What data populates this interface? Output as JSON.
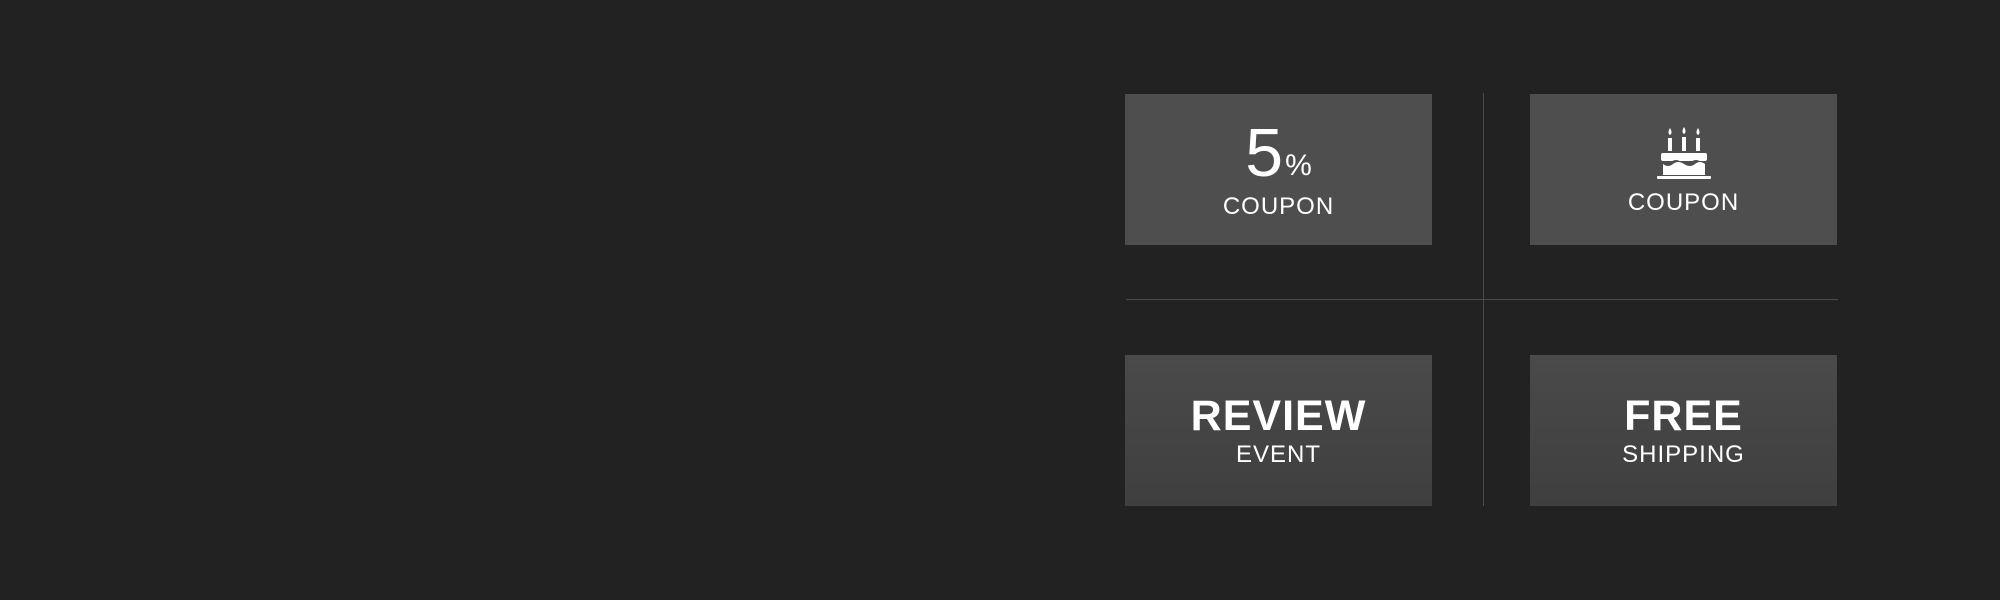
{
  "coupons": {
    "percent_coupon": {
      "number": "5",
      "percent_sign": "%",
      "label": "COUPON"
    },
    "birthday_coupon": {
      "icon": "birthday-cake-icon",
      "label": "COUPON"
    },
    "review_event": {
      "title": "REVIEW",
      "subtitle": "EVENT"
    },
    "free_shipping": {
      "title": "FREE",
      "subtitle": "SHIPPING"
    }
  },
  "colors": {
    "background": "#222222",
    "tile": "#4e4e4e",
    "divider": "#4a4a4a",
    "text": "#ffffff"
  }
}
